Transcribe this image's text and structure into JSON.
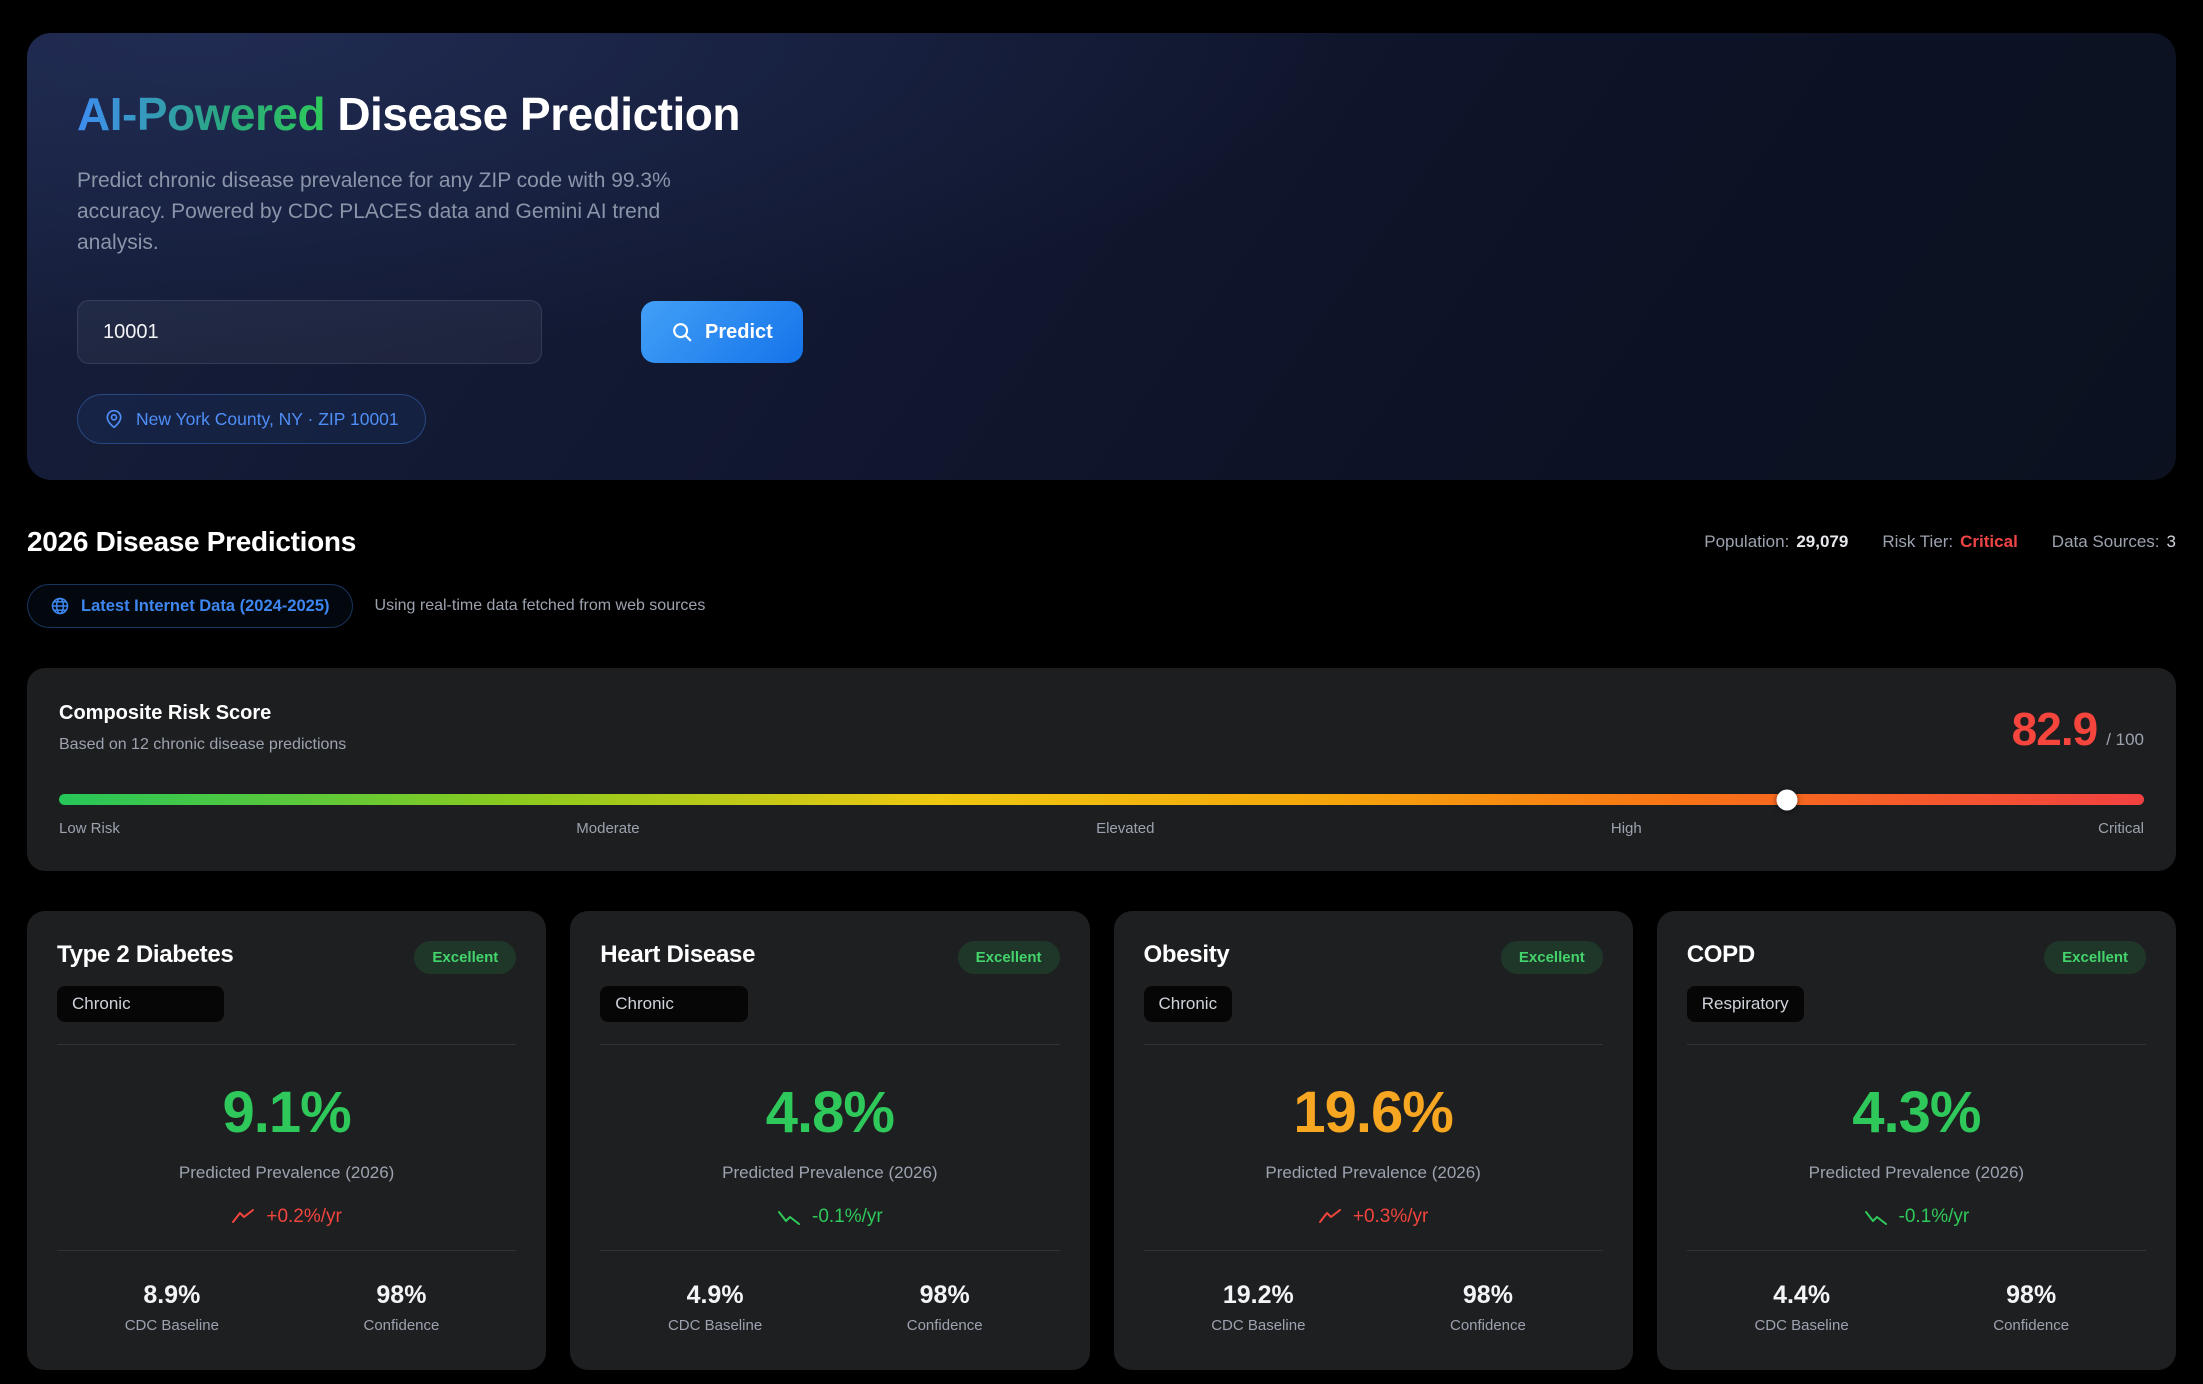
{
  "hero": {
    "title_accent": "AI-Powered",
    "title_rest": "Disease Prediction",
    "subtitle": "Predict chronic disease prevalence for any ZIP code with 99.3% accuracy. Powered by CDC PLACES data and Gemini AI trend analysis.",
    "zip_input_value": "10001",
    "predict_button_label": "Predict",
    "location_badge": "New York County, NY · ZIP 10001"
  },
  "predictions_header": {
    "title": "2026 Disease Predictions",
    "stats": [
      {
        "label": "Population:",
        "value": "29,079",
        "value_color": "#e5e7eb",
        "value_bold": true
      },
      {
        "label": "Risk Tier:",
        "value": "Critical",
        "value_color": "#ef4444",
        "value_bold": true
      },
      {
        "label": "Data Sources:",
        "value": "3",
        "value_color": "#d1d5db",
        "value_bold": false
      }
    ],
    "data_badge": "Latest Internet Data (2024-2025)",
    "data_badge_note": "Using real-time data fetched from web sources"
  },
  "composite": {
    "title": "Composite Risk Score",
    "subtitle": "Based on 12 chronic disease predictions",
    "score": "82.9",
    "score_max": "/ 100",
    "score_percent": 82.9,
    "score_color": "#f6453d",
    "scale_labels": [
      "Low Risk",
      "Moderate",
      "Elevated",
      "High",
      "Critical"
    ]
  },
  "cards": [
    {
      "title": "Type 2 Diabetes",
      "badge": "Excellent",
      "tag": "Chronic",
      "tag_min_width": 167,
      "value": "9.1%",
      "value_color": "#2fc85a",
      "value_label": "Predicted Prevalence (2026)",
      "trend": "+0.2%/yr",
      "trend_direction": "up",
      "trend_color": "#f1453d",
      "baseline": "8.9%",
      "baseline_label": "CDC Baseline",
      "confidence": "98%",
      "confidence_label": "Confidence"
    },
    {
      "title": "Heart Disease",
      "badge": "Excellent",
      "tag": "Chronic",
      "tag_min_width": 148,
      "value": "4.8%",
      "value_color": "#2fc85a",
      "value_label": "Predicted Prevalence (2026)",
      "trend": "-0.1%/yr",
      "trend_direction": "down",
      "trend_color": "#2fc85a",
      "baseline": "4.9%",
      "baseline_label": "CDC Baseline",
      "confidence": "98%",
      "confidence_label": "Confidence"
    },
    {
      "title": "Obesity",
      "badge": "Excellent",
      "tag": "Chronic",
      "tag_min_width": 0,
      "value": "19.6%",
      "value_color": "#f6a620",
      "value_label": "Predicted Prevalence (2026)",
      "trend": "+0.3%/yr",
      "trend_direction": "up",
      "trend_color": "#f1453d",
      "baseline": "19.2%",
      "baseline_label": "CDC Baseline",
      "confidence": "98%",
      "confidence_label": "Confidence"
    },
    {
      "title": "COPD",
      "badge": "Excellent",
      "tag": "Respiratory",
      "tag_min_width": 0,
      "value": "4.3%",
      "value_color": "#2fc85a",
      "value_label": "Predicted Prevalence (2026)",
      "trend": "-0.1%/yr",
      "trend_direction": "down",
      "trend_color": "#2fc85a",
      "baseline": "4.4%",
      "baseline_label": "CDC Baseline",
      "confidence": "98%",
      "confidence_label": "Confidence"
    }
  ]
}
